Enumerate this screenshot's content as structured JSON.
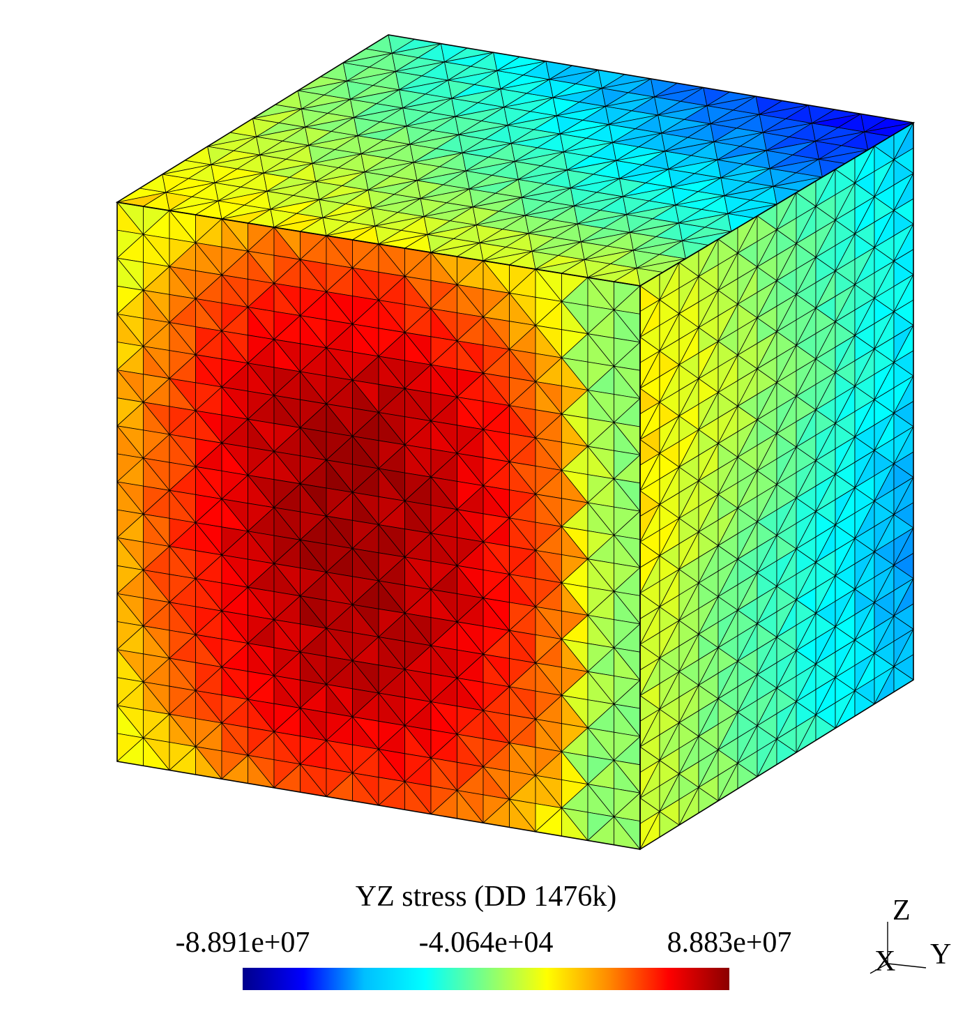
{
  "legend": {
    "title": "YZ stress (DD 1476k)",
    "min_label": "-8.891e+07",
    "mid_label": "-4.064e+04",
    "max_label": "8.883e+07",
    "min_value": -88910000,
    "max_value": 88830000,
    "colormap": "jet",
    "stops": [
      "#00008b",
      "#0000ff",
      "#00bfff",
      "#00ffff",
      "#7fff7f",
      "#ffff00",
      "#ff8c00",
      "#ff0000",
      "#8b0000"
    ]
  },
  "axes": {
    "x_label": "X",
    "y_label": "Y",
    "z_label": "Z"
  },
  "mesh": {
    "shape": "cube",
    "edge_color": "#000000",
    "visible_faces": [
      "front",
      "right",
      "top"
    ]
  }
}
